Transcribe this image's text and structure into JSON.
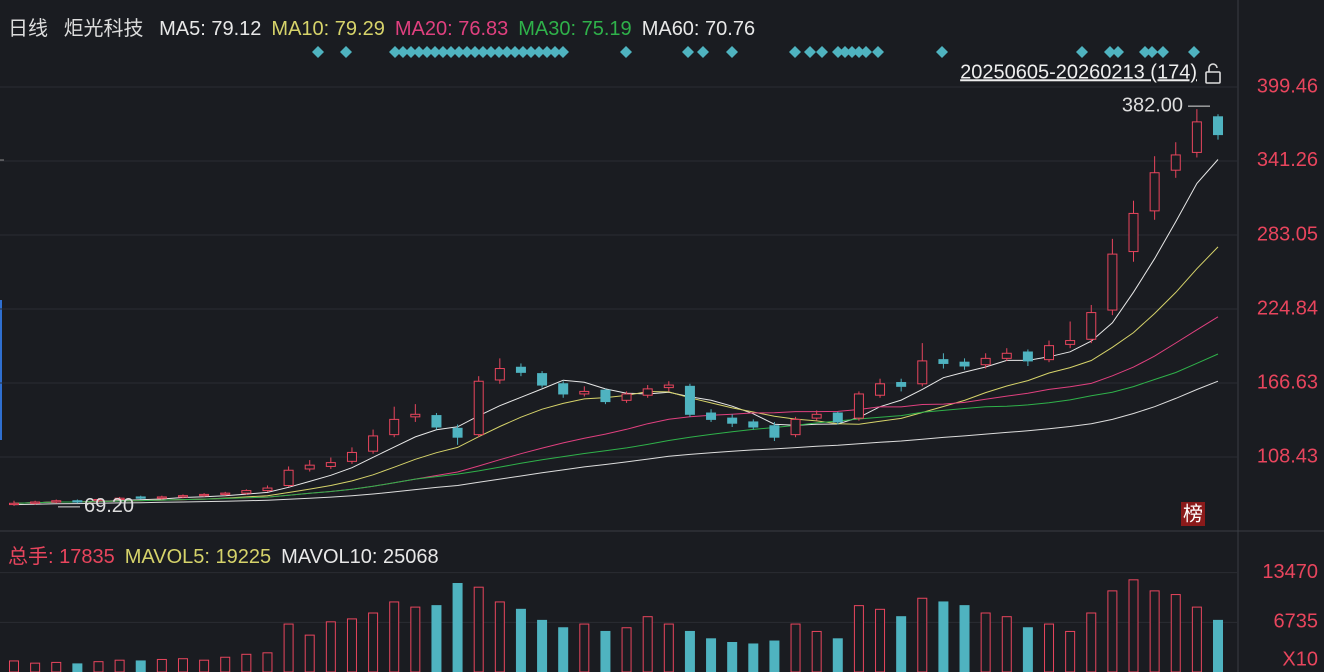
{
  "header": {
    "period": "日线",
    "stock": "炬光科技",
    "ma_legend": [
      {
        "text": "MA5: 79.12",
        "color": "#e8e8e8"
      },
      {
        "text": "MA10: 79.29",
        "color": "#d6d36a"
      },
      {
        "text": "MA20: 76.83",
        "color": "#e0407f"
      },
      {
        "text": "MA30: 75.19",
        "color": "#2fb14a"
      },
      {
        "text": "MA60: 70.76",
        "color": "#e8e8e8"
      }
    ],
    "vol_legend": [
      {
        "text": "总手: 17835",
        "color": "#e8455d"
      },
      {
        "text": "MAVOL5: 19225",
        "color": "#d6d36a"
      },
      {
        "text": "MAVOL10: 25068",
        "color": "#e8e8e8"
      }
    ],
    "range_text": "20250605-20260213 (174)",
    "badge": "榜"
  },
  "chart_data": [
    {
      "type": "candlestick",
      "up_color": "#e8455d",
      "down_color": "#4fb3c0",
      "ylim": [
        51,
        460
      ],
      "yticks": [
        108.43,
        166.63,
        224.84,
        283.05,
        341.26,
        399.46
      ],
      "grid": true,
      "open": [
        71,
        72,
        73,
        74,
        74,
        75,
        77,
        76,
        77,
        78,
        79,
        80,
        82,
        86,
        99,
        101,
        105,
        113,
        126,
        140,
        141,
        131,
        126,
        169,
        179,
        174,
        166,
        158,
        161,
        153,
        157,
        163,
        164,
        143,
        139,
        136,
        133,
        126,
        139,
        143,
        139,
        157,
        167,
        166,
        185,
        183,
        181,
        186,
        191,
        185,
        197,
        201,
        224,
        270,
        302,
        334,
        348,
        376
      ],
      "high": [
        74,
        74,
        75,
        75,
        76,
        77,
        78,
        78,
        79,
        80,
        81,
        83,
        86,
        101,
        106,
        108,
        116,
        130,
        148,
        150,
        143,
        134,
        172,
        186,
        182,
        176,
        168,
        164,
        162,
        160,
        165,
        168,
        166,
        146,
        142,
        138,
        136,
        140,
        145,
        144,
        160,
        170,
        170,
        198,
        190,
        186,
        190,
        194,
        193,
        200,
        215,
        228,
        280,
        310,
        345,
        356,
        382,
        378
      ],
      "low": [
        70,
        71,
        72,
        72,
        73,
        74,
        75,
        75,
        76,
        77,
        78,
        79,
        81,
        85,
        97,
        99,
        103,
        111,
        124,
        136,
        130,
        118,
        124,
        166,
        172,
        163,
        155,
        156,
        150,
        151,
        155,
        160,
        140,
        136,
        132,
        130,
        121,
        124,
        137,
        134,
        137,
        155,
        160,
        164,
        178,
        177,
        178,
        184,
        180,
        183,
        194,
        198,
        220,
        262,
        295,
        328,
        344,
        358
      ],
      "close": [
        72,
        73,
        74,
        73,
        75,
        76,
        76,
        77,
        78,
        79,
        80,
        82,
        84,
        98,
        102,
        104,
        112,
        125,
        138,
        142,
        132,
        124,
        168,
        178,
        175,
        165,
        158,
        160,
        152,
        158,
        162,
        165,
        142,
        138,
        135,
        132,
        124,
        138,
        142,
        136,
        158,
        166,
        164,
        184,
        182,
        180,
        186,
        190,
        184,
        196,
        200,
        222,
        268,
        300,
        332,
        346,
        372,
        362
      ],
      "series": [
        {
          "color": "#e8e8e8",
          "values": [
            72,
            72.5,
            73,
            73,
            73.4,
            74.2,
            74.8,
            75.4,
            76.6,
            77.2,
            78,
            79.2,
            80.6,
            84.6,
            89.2,
            94,
            100,
            108.2,
            116.2,
            124.2,
            129.8,
            132.2,
            140.8,
            148.8,
            155.4,
            162,
            168.8,
            167.2,
            162,
            158.6,
            158,
            159.4,
            155.8,
            153,
            148.4,
            142.4,
            134.2,
            133.4,
            134.2,
            134.4,
            139.6,
            148,
            153.2,
            161.6,
            170.8,
            175.2,
            179.2,
            184.4,
            184.4,
            187.2,
            191.2,
            199.6,
            214,
            238,
            264.4,
            293.6,
            323.6,
            342.4
          ]
        },
        {
          "color": "#d6d36a",
          "values": [
            72,
            72.5,
            73,
            73,
            73.4,
            73.8,
            74.1,
            74.5,
            74.9,
            75.3,
            76.1,
            77,
            78,
            80.5,
            83.2,
            86,
            89.6,
            94.4,
            100.4,
            106.6,
            111.8,
            116,
            124.4,
            132.4,
            139.7,
            146,
            150.6,
            154.1,
            155.1,
            156.9,
            159.9,
            159.6,
            155,
            151,
            147,
            143.8,
            140.4,
            138.2,
            136.8,
            134.6,
            134.2,
            136.6,
            138.8,
            143.4,
            148.1,
            152.9,
            159.1,
            164.3,
            168.5,
            174.5,
            178.7,
            184.3,
            194.7,
            206.3,
            221.3,
            237.9,
            256.5,
            273.7
          ]
        },
        {
          "color": "#e0407f",
          "values": [
            72,
            72.5,
            73,
            73,
            73.4,
            73.8,
            74.1,
            74.5,
            74.9,
            75.3,
            75.8,
            76.3,
            76.9,
            78.4,
            79.9,
            81.3,
            83.1,
            85.4,
            88.2,
            91,
            93.9,
            96.6,
            101.3,
            106.3,
            111,
            115.4,
            119.5,
            123.2,
            126.4,
            130.2,
            134.6,
            138.1,
            140,
            141.2,
            142.1,
            143.1,
            143.2,
            144.1,
            144.1,
            144.3,
            145.8,
            147.9,
            147.8,
            149.7,
            150,
            151.4,
            153.8,
            156.3,
            158.5,
            161.6,
            163.7,
            166.3,
            172.3,
            179.1,
            187.8,
            198.1,
            208.5,
            218.7
          ]
        },
        {
          "color": "#2fb14a",
          "values": [
            72,
            72.5,
            73,
            73,
            73.4,
            73.8,
            74.1,
            74.5,
            74.9,
            75.3,
            75.8,
            76.3,
            76.9,
            78.4,
            79.9,
            81.3,
            83.1,
            85.4,
            88.2,
            91,
            93,
            95,
            97.5,
            100.5,
            103.5,
            106.2,
            108.7,
            111.2,
            113.3,
            115.6,
            118.3,
            121.4,
            124,
            126.2,
            128.2,
            130.1,
            131.6,
            133.3,
            135.2,
            136.7,
            138.3,
            139.7,
            141,
            143.6,
            145.1,
            146.6,
            147.9,
            148.3,
            149.4,
            151.1,
            153.3,
            156.6,
            159.4,
            163.8,
            169.4,
            174.9,
            182.1,
            189.4
          ]
        },
        {
          "color": "#dddddd",
          "values": [
            71,
            71.3,
            71.6,
            71.8,
            72,
            72.3,
            72.5,
            72.8,
            73,
            73.3,
            73.6,
            74,
            74.4,
            75.2,
            76,
            76.9,
            78,
            79.3,
            81,
            82.8,
            84.5,
            86,
            88.5,
            91,
            93.5,
            96,
            98.3,
            100.6,
            102.5,
            104.6,
            106.8,
            109,
            110.5,
            111.8,
            113,
            114,
            114.8,
            115.8,
            116.8,
            117.6,
            118.8,
            120,
            121,
            122.4,
            123.8,
            125,
            126.4,
            127.8,
            129,
            130.6,
            132.4,
            134.6,
            138,
            142.6,
            148,
            154.5,
            161.5,
            168
          ]
        }
      ],
      "max_label": {
        "value": 382,
        "label": "382.00"
      },
      "min_label": {
        "value": 69.2,
        "label": "69.20"
      }
    },
    {
      "type": "volume",
      "ylim": [
        0,
        17900
      ],
      "yticks": [
        6735,
        13470
      ],
      "unit": "X10",
      "values": [
        1500,
        1200,
        1300,
        1100,
        1400,
        1600,
        1500,
        1700,
        1800,
        1600,
        2000,
        2400,
        2600,
        6500,
        5000,
        6800,
        7200,
        8000,
        9500,
        8800,
        9000,
        12000,
        11500,
        9500,
        8500,
        7000,
        6000,
        6500,
        5500,
        6000,
        7500,
        6500,
        5500,
        4500,
        4000,
        3800,
        4200,
        6500,
        5500,
        4500,
        9000,
        8500,
        7500,
        10000,
        9500,
        9000,
        8000,
        7500,
        6000,
        6500,
        5500,
        8000,
        11000,
        12500,
        11000,
        10500,
        8800,
        7000
      ]
    }
  ]
}
